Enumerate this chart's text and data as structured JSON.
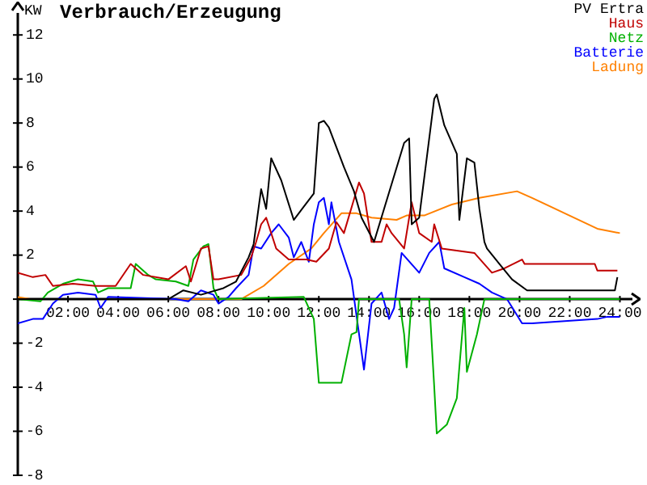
{
  "chart_data": {
    "type": "line",
    "title": "Verbrauch/Erzeugung",
    "ylabel": "KW",
    "xlim": [
      0,
      24.5
    ],
    "ylim": [
      -8,
      13
    ],
    "xticks": [
      {
        "value": 2,
        "label": "02:00"
      },
      {
        "value": 4,
        "label": "04:00"
      },
      {
        "value": 6,
        "label": "06:00"
      },
      {
        "value": 8,
        "label": "08:00"
      },
      {
        "value": 10,
        "label": "10:00"
      },
      {
        "value": 12,
        "label": "12:00"
      },
      {
        "value": 14,
        "label": "14:00"
      },
      {
        "value": 16,
        "label": "16:00"
      },
      {
        "value": 18,
        "label": "18:00"
      },
      {
        "value": 20,
        "label": "20:00"
      },
      {
        "value": 22,
        "label": "22:00"
      },
      {
        "value": 24,
        "label": "24:00"
      }
    ],
    "yticks": [
      -8,
      -6,
      -4,
      -2,
      {
        "value": 0,
        "label": null
      },
      2,
      4,
      6,
      8,
      10,
      12
    ],
    "grid": false,
    "legend": "top right",
    "marker": "none",
    "line_style": "solid",
    "series": [
      {
        "name": "PV Ertra",
        "color": "#000000",
        "x": [
          0,
          6.0,
          6.6,
          7.3,
          8.2,
          8.7,
          9.2,
          9.4,
          9.7,
          9.9,
          10.1,
          10.5,
          11.0,
          11.4,
          11.8,
          12.0,
          12.2,
          12.4,
          13.0,
          13.4,
          13.7,
          14.2,
          15.4,
          15.6,
          15.7,
          16.0,
          16.6,
          16.7,
          17.0,
          17.5,
          17.6,
          17.9,
          18.2,
          18.4,
          18.6,
          18.7,
          19.2,
          19.7,
          20.3,
          23.8,
          23.9
        ],
        "values": [
          0,
          0,
          0.4,
          0.2,
          0.5,
          0.8,
          1.9,
          2.5,
          5.0,
          4.1,
          6.4,
          5.4,
          3.6,
          4.2,
          4.8,
          8.0,
          8.1,
          7.8,
          6.0,
          4.9,
          3.7,
          2.6,
          7.1,
          7.3,
          3.4,
          3.7,
          9.1,
          9.3,
          7.9,
          6.6,
          3.6,
          6.4,
          6.2,
          4.1,
          2.6,
          2.3,
          1.6,
          0.9,
          0.4,
          0.4,
          1.0
        ]
      },
      {
        "name": "Haus",
        "color": "#c00000",
        "x": [
          0,
          0.6,
          1.1,
          1.4,
          2.2,
          3.1,
          3.9,
          4.5,
          5.0,
          6.0,
          6.7,
          6.9,
          7.3,
          7.6,
          7.8,
          8.0,
          8.9,
          9.3,
          9.5,
          9.7,
          9.9,
          10.3,
          10.8,
          11.5,
          11.9,
          12.4,
          12.7,
          13.0,
          13.6,
          13.8,
          14.1,
          14.5,
          14.7,
          14.9,
          15.4,
          15.7,
          16.0,
          16.5,
          16.6,
          16.9,
          18.2,
          18.9,
          19.4,
          20.1,
          20.2,
          21.1,
          23.0,
          23.1,
          23.9
        ],
        "values": [
          1.2,
          1.0,
          1.1,
          0.6,
          0.7,
          0.6,
          0.6,
          1.6,
          1.1,
          0.9,
          1.5,
          0.8,
          2.3,
          2.4,
          0.9,
          0.9,
          1.1,
          1.9,
          2.6,
          3.4,
          3.7,
          2.3,
          1.8,
          1.8,
          1.7,
          2.3,
          3.5,
          3.0,
          5.3,
          4.8,
          2.6,
          2.6,
          3.4,
          3.0,
          2.3,
          4.4,
          3.0,
          2.6,
          3.4,
          2.3,
          2.1,
          1.2,
          1.4,
          1.8,
          1.6,
          1.6,
          1.6,
          1.3,
          1.3
        ]
      },
      {
        "name": "Netz",
        "color": "#00b000",
        "x": [
          0,
          0.9,
          1.2,
          1.8,
          2.4,
          3.0,
          3.2,
          3.6,
          4.5,
          4.7,
          5.2,
          5.5,
          6.3,
          6.8,
          7.0,
          7.4,
          7.6,
          7.8,
          8.0,
          11.4,
          11.8,
          12.0,
          12.9,
          13.3,
          13.5,
          13.6,
          15.2,
          15.4,
          15.5,
          15.7,
          16.4,
          16.6,
          16.7,
          17.1,
          17.5,
          17.6,
          17.8,
          17.9,
          18.3,
          18.6,
          24.0
        ],
        "values": [
          0,
          -0.1,
          0.3,
          0.7,
          0.9,
          0.8,
          0.3,
          0.5,
          0.5,
          1.6,
          1.1,
          0.9,
          0.8,
          0.6,
          1.8,
          2.4,
          2.5,
          0.5,
          0,
          0.1,
          -0.9,
          -3.8,
          -3.8,
          -1.6,
          -1.5,
          0,
          0,
          -1.6,
          -3.1,
          0,
          0,
          -4.0,
          -6.1,
          -5.7,
          -4.5,
          -3.1,
          -0.4,
          -3.3,
          -1.6,
          0,
          0
        ]
      },
      {
        "name": "Batterie",
        "color": "#0000ff",
        "x": [
          0,
          0.6,
          1.0,
          1.4,
          1.8,
          2.4,
          3.1,
          3.3,
          3.6,
          6.3,
          6.8,
          7.3,
          7.8,
          8.0,
          8.4,
          8.7,
          9.2,
          9.4,
          9.7,
          10.1,
          10.4,
          10.8,
          11.0,
          11.3,
          11.6,
          11.8,
          12.0,
          12.2,
          12.4,
          12.5,
          12.8,
          13.3,
          13.8,
          14.1,
          14.5,
          14.8,
          15.0,
          15.3,
          16.0,
          16.4,
          16.8,
          17.0,
          17.8,
          18.4,
          18.9,
          19.5,
          20.1,
          20.5,
          23.1,
          23.5,
          24.0
        ],
        "values": [
          -1.1,
          -0.9,
          -0.9,
          -0.2,
          0.2,
          0.3,
          0.2,
          -0.4,
          0.1,
          0,
          -0.1,
          0.4,
          0.2,
          -0.2,
          0.1,
          0.5,
          1.1,
          2.4,
          2.3,
          3.0,
          3.4,
          2.8,
          1.9,
          2.6,
          1.7,
          3.4,
          4.4,
          4.6,
          3.4,
          4.4,
          2.6,
          0.9,
          -3.2,
          -0.2,
          0.3,
          -0.9,
          -0.4,
          2.1,
          1.2,
          2.1,
          2.6,
          1.4,
          1.0,
          0.7,
          0.3,
          0,
          -1.1,
          -1.1,
          -0.9,
          -0.8,
          -0.8
        ]
      },
      {
        "name": "Ladung",
        "color": "#ff8000",
        "x": [
          0,
          0.5,
          8.9,
          9.8,
          10.8,
          11.7,
          12.2,
          12.9,
          13.5,
          14.1,
          15.1,
          15.5,
          16.2,
          17.3,
          18.4,
          19.9,
          20.5,
          21.8,
          23.1,
          24.0
        ],
        "values": [
          0.1,
          0,
          0,
          0.6,
          1.6,
          2.3,
          3.0,
          3.9,
          3.9,
          3.7,
          3.6,
          3.8,
          3.8,
          4.3,
          4.6,
          4.9,
          4.6,
          3.9,
          3.2,
          3.0
        ]
      }
    ]
  }
}
